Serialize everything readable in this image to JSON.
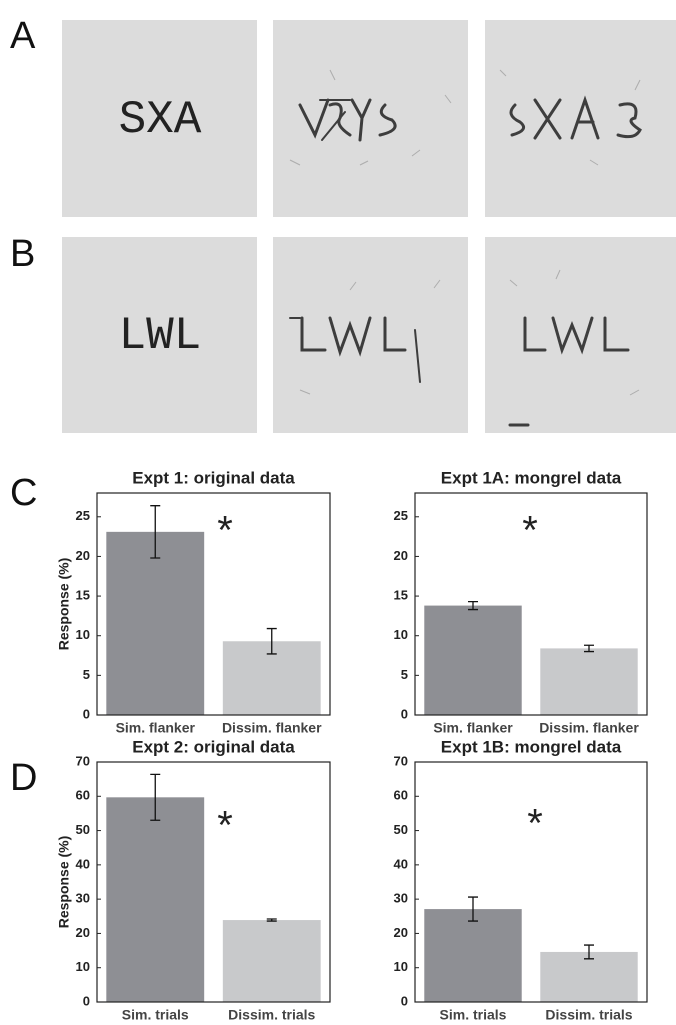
{
  "panel_labels": [
    "A",
    "B",
    "C",
    "D"
  ],
  "stimuli": [
    "SXA",
    "LWL"
  ],
  "chart_data": [
    {
      "type": "bar",
      "title": "Expt 1: original data",
      "ylabel": "Response (%)",
      "categories": [
        "Sim. flanker",
        "Dissim. flanker"
      ],
      "values": [
        23.1,
        9.3
      ],
      "errors": [
        3.3,
        1.6
      ],
      "colors": [
        "#8e8f94",
        "#c8c9cb"
      ],
      "ylim": [
        0,
        28
      ],
      "yticks": [
        0,
        5,
        10,
        15,
        20,
        25
      ],
      "annotation": "*"
    },
    {
      "type": "bar",
      "title": "Expt 1A: mongrel data",
      "categories": [
        "Sim. flanker",
        "Dissim. flanker"
      ],
      "values": [
        13.8,
        8.4
      ],
      "errors": [
        0.5,
        0.4
      ],
      "colors": [
        "#8e8f94",
        "#c8c9cb"
      ],
      "ylim": [
        0,
        28
      ],
      "yticks": [
        0,
        5,
        10,
        15,
        20,
        25
      ],
      "annotation": "*"
    },
    {
      "type": "bar",
      "title": "Expt 2: original data",
      "ylabel": "Response (%)",
      "categories": [
        "Sim. trials",
        "Dissim. trials"
      ],
      "values": [
        59.7,
        23.9
      ],
      "errors": [
        6.7,
        0.3
      ],
      "colors": [
        "#8e8f94",
        "#c8c9cb"
      ],
      "ylim": [
        0,
        70
      ],
      "yticks": [
        0,
        10,
        20,
        30,
        40,
        50,
        60,
        70
      ],
      "annotation": "*"
    },
    {
      "type": "bar",
      "title": "Expt 1B: mongrel data",
      "categories": [
        "Sim. trials",
        "Dissim. trials"
      ],
      "values": [
        27.1,
        14.6
      ],
      "errors": [
        3.5,
        2.0
      ],
      "colors": [
        "#8e8f94",
        "#c8c9cb"
      ],
      "ylim": [
        0,
        70
      ],
      "yticks": [
        0,
        10,
        20,
        30,
        40,
        50,
        60,
        70
      ],
      "annotation": "*"
    }
  ]
}
